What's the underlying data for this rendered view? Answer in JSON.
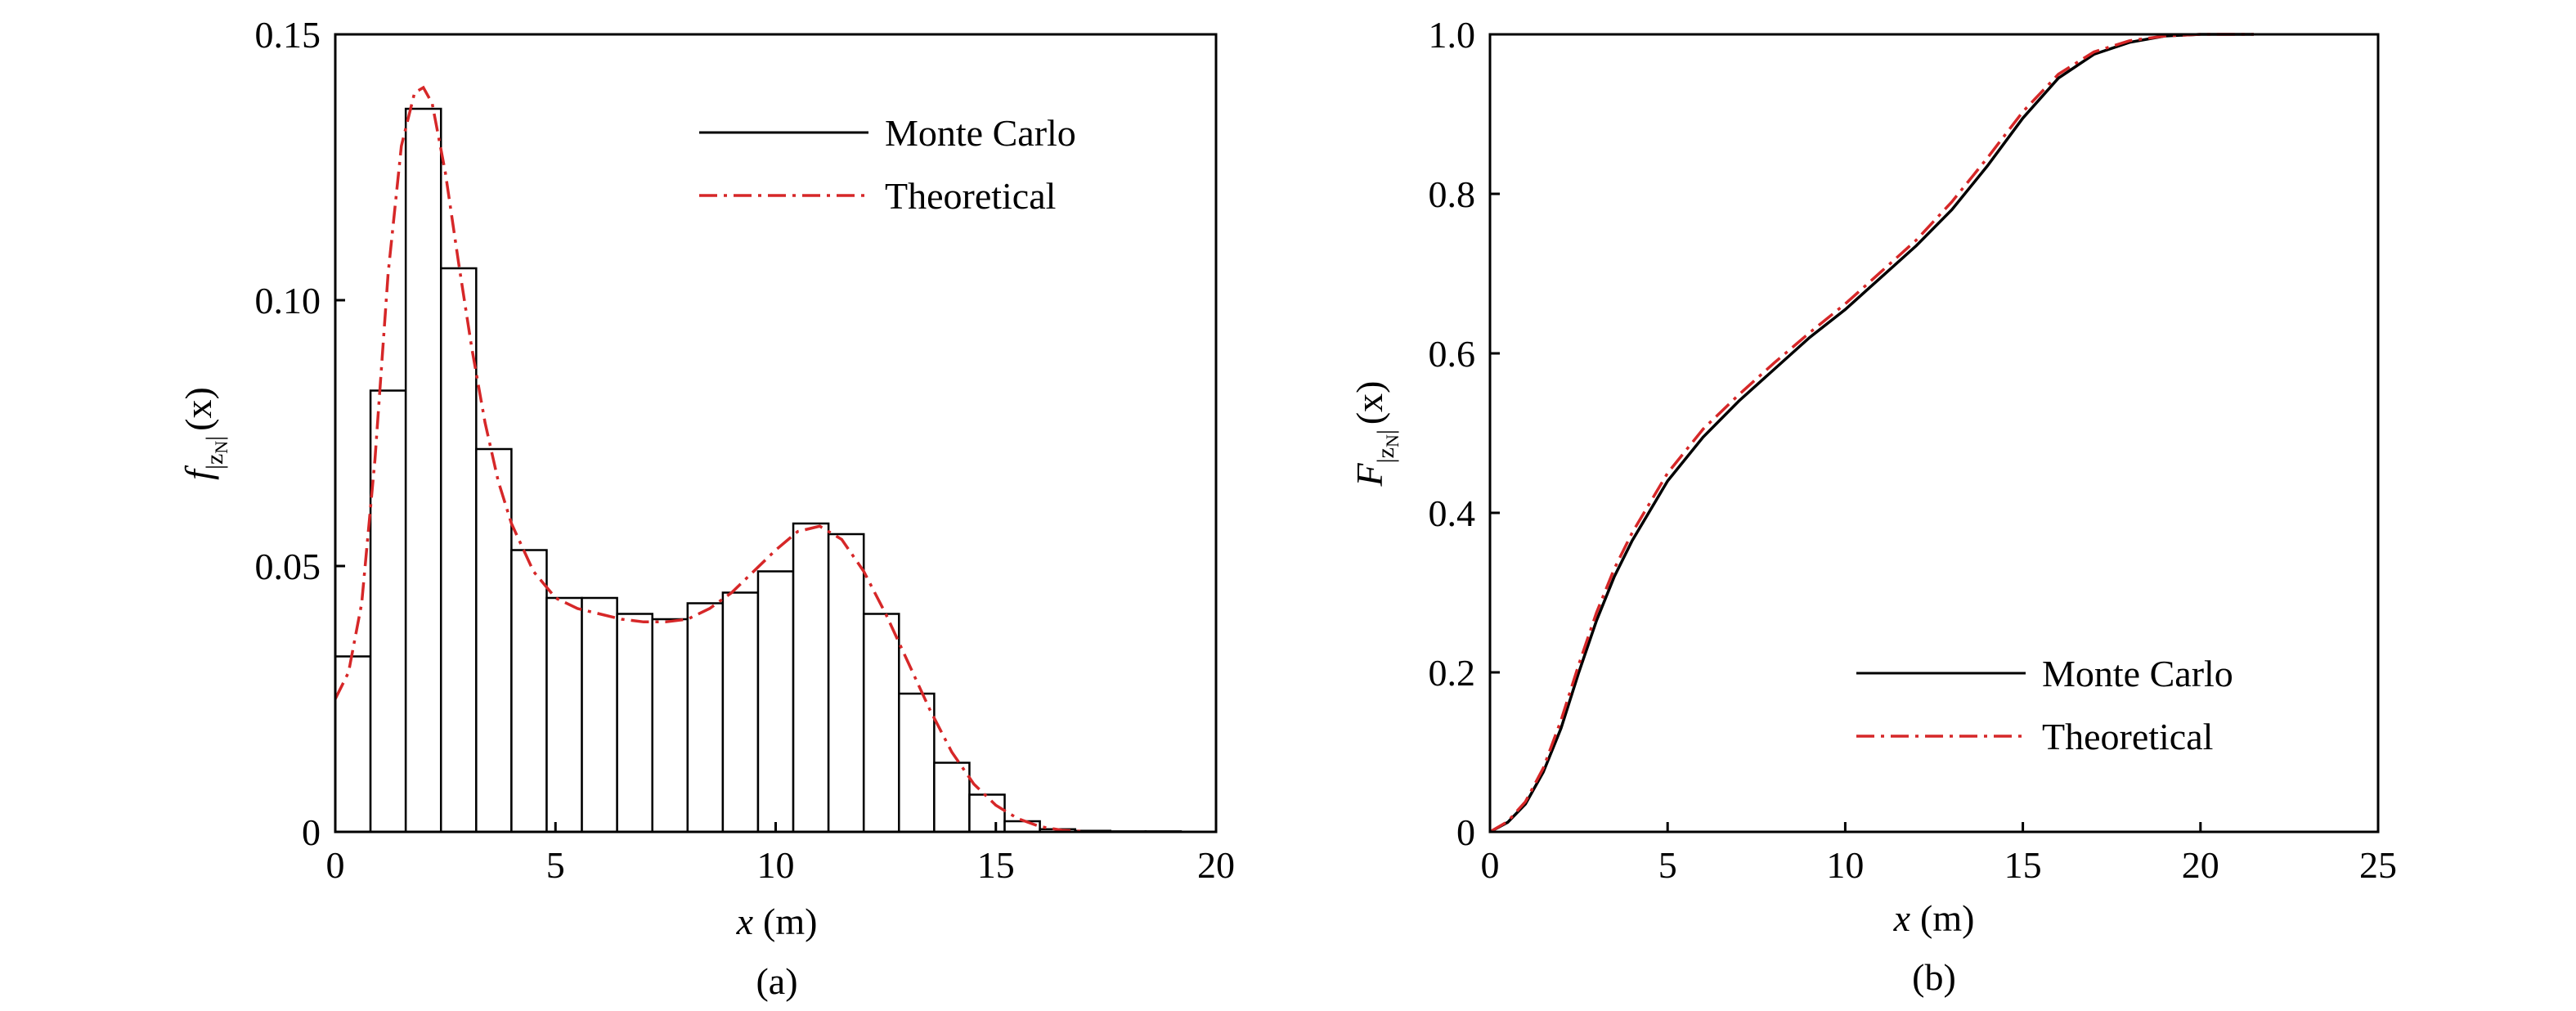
{
  "colors": {
    "monte_carlo": "#000000",
    "theoretical": "#d62728",
    "axes": "#000000"
  },
  "chart_data": [
    {
      "type": "bar",
      "caption": "(a)",
      "xlabel": {
        "var": "x",
        "unit": "(m)"
      },
      "ylabel": {
        "func": "f",
        "sub": "|z",
        "subsub": "N",
        "subend": "|",
        "arg": "(x)"
      },
      "xlim": [
        0,
        20
      ],
      "ylim": [
        0,
        0.15
      ],
      "xticks": [
        0,
        5,
        10,
        15,
        20
      ],
      "xtick_labels": [
        "0",
        "5",
        "10",
        "15",
        "20"
      ],
      "yticks": [
        0,
        0.05,
        0.1,
        0.15
      ],
      "ytick_labels": [
        "0",
        "0.05",
        "0.10",
        "0.15"
      ],
      "legend_position": "top-right",
      "legend": [
        "Monte Carlo",
        "Theoretical"
      ],
      "histogram": {
        "name": "Monte Carlo",
        "bin_edges": [
          0,
          0.8,
          1.6,
          2.4,
          3.2,
          4.0,
          4.8,
          5.6,
          6.4,
          7.2,
          8.0,
          8.8,
          9.6,
          10.4,
          11.2,
          12.0,
          12.8,
          13.6,
          14.4,
          15.2,
          16.0,
          16.8,
          17.6,
          18.4,
          19.2
        ],
        "values": [
          0.033,
          0.083,
          0.136,
          0.106,
          0.072,
          0.053,
          0.044,
          0.044,
          0.041,
          0.04,
          0.043,
          0.045,
          0.049,
          0.058,
          0.056,
          0.041,
          0.026,
          0.013,
          0.007,
          0.002,
          0.0005,
          0.0002,
          0.0001,
          0.0001
        ]
      },
      "series": [
        {
          "name": "Theoretical",
          "x": [
            0,
            0.3,
            0.6,
            0.9,
            1.2,
            1.5,
            1.8,
            2.0,
            2.2,
            2.5,
            2.8,
            3.1,
            3.4,
            3.7,
            4.0,
            4.5,
            5.0,
            5.5,
            6.0,
            6.5,
            7.0,
            7.5,
            8.0,
            8.5,
            9.0,
            9.5,
            10.0,
            10.5,
            11.0,
            11.5,
            12.0,
            12.5,
            13.0,
            13.5,
            14.0,
            14.5,
            15.0,
            15.5,
            16.0,
            16.5,
            17.0
          ],
          "y": [
            0.025,
            0.03,
            0.043,
            0.07,
            0.105,
            0.129,
            0.139,
            0.14,
            0.137,
            0.124,
            0.107,
            0.091,
            0.077,
            0.066,
            0.058,
            0.049,
            0.044,
            0.042,
            0.041,
            0.04,
            0.0395,
            0.0395,
            0.04,
            0.042,
            0.045,
            0.049,
            0.053,
            0.0565,
            0.0575,
            0.055,
            0.049,
            0.041,
            0.032,
            0.023,
            0.015,
            0.009,
            0.005,
            0.0025,
            0.001,
            0.0003,
            0.0001
          ]
        }
      ]
    },
    {
      "type": "line",
      "caption": "(b)",
      "xlabel": {
        "var": "x",
        "unit": "(m)"
      },
      "ylabel": {
        "func": "F",
        "sub": "|z",
        "subsub": "N",
        "subend": "|",
        "arg": "(x)"
      },
      "xlim": [
        0,
        25
      ],
      "ylim": [
        0,
        1.0
      ],
      "xticks": [
        0,
        5,
        10,
        15,
        20,
        25
      ],
      "xtick_labels": [
        "0",
        "5",
        "10",
        "15",
        "20",
        "25"
      ],
      "yticks": [
        0,
        0.2,
        0.4,
        0.6,
        0.8,
        1.0
      ],
      "ytick_labels": [
        "0",
        "0.2",
        "0.4",
        "0.6",
        "0.8",
        "1.0"
      ],
      "legend_position": "bottom-right",
      "legend": [
        "Monte Carlo",
        "Theoretical"
      ],
      "series": [
        {
          "name": "Monte Carlo",
          "x": [
            0,
            0.5,
            1,
            1.5,
            2,
            2.5,
            3,
            3.5,
            4,
            5,
            6,
            7,
            8,
            9,
            10,
            11,
            12,
            13,
            14,
            15,
            16,
            17,
            18,
            19,
            20,
            21.5
          ],
          "y": [
            0,
            0.012,
            0.035,
            0.075,
            0.13,
            0.2,
            0.265,
            0.32,
            0.365,
            0.44,
            0.495,
            0.54,
            0.58,
            0.62,
            0.655,
            0.695,
            0.735,
            0.78,
            0.835,
            0.895,
            0.945,
            0.975,
            0.99,
            0.998,
            1.0,
            1.0
          ]
        },
        {
          "name": "Theoretical",
          "x": [
            0,
            0.5,
            1,
            1.5,
            2,
            2.5,
            3,
            3.5,
            4,
            5,
            6,
            7,
            8,
            9,
            10,
            11,
            12,
            13,
            14,
            15,
            16,
            17,
            18,
            19,
            20,
            21.5
          ],
          "y": [
            0,
            0.013,
            0.038,
            0.08,
            0.14,
            0.21,
            0.275,
            0.33,
            0.375,
            0.45,
            0.505,
            0.548,
            0.588,
            0.626,
            0.662,
            0.702,
            0.742,
            0.79,
            0.845,
            0.903,
            0.95,
            0.978,
            0.992,
            0.998,
            1.0,
            1.0
          ]
        }
      ]
    }
  ]
}
